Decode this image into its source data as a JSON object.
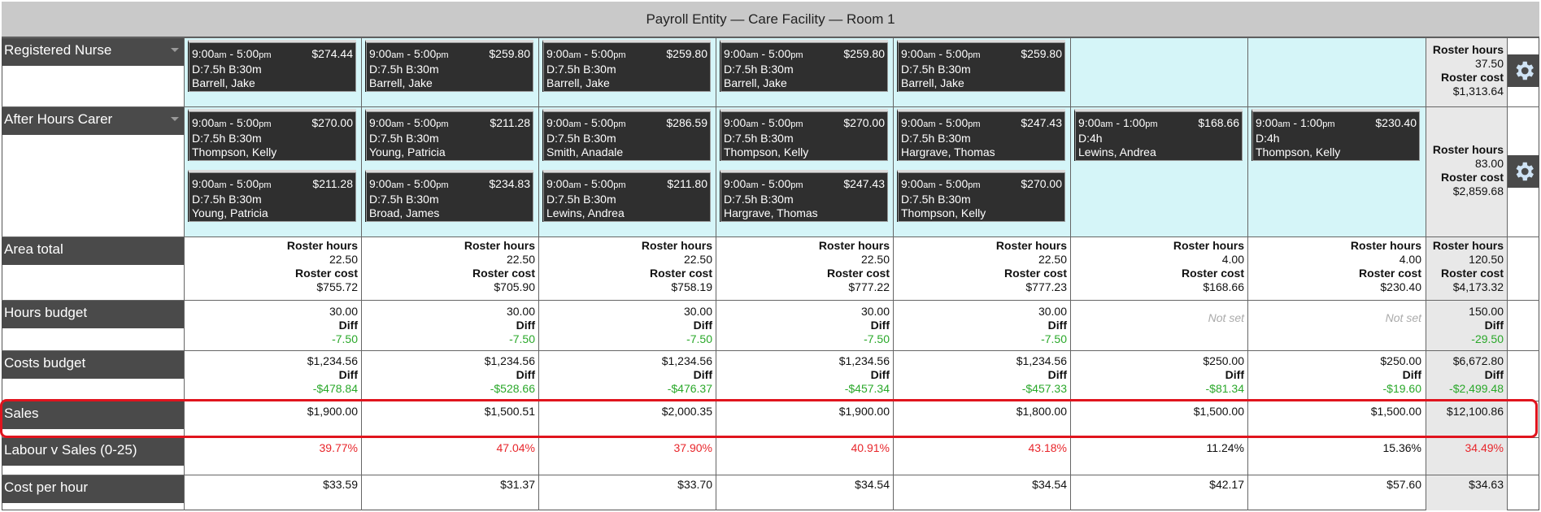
{
  "title": "Payroll Entity — Care Facility — Room 1",
  "rows": {
    "registered_nurse": "Registered Nurse",
    "after_hours_carer": "After Hours Carer",
    "area_total": "Area total",
    "hours_budget": "Hours budget",
    "costs_budget": "Costs budget",
    "sales": "Sales",
    "labour_v_sales": "Labour v Sales (0-25)",
    "cost_per_hour": "Cost per hour"
  },
  "labels": {
    "roster_hours": "Roster hours",
    "roster_cost": "Roster cost",
    "diff": "Diff",
    "not_set": "Not set"
  },
  "shifts": {
    "rn": [
      {
        "start": "9:00",
        "sa": "am",
        "end": "5:00",
        "ea": "pm",
        "cost": "$274.44",
        "detail": "D:7.5h B:30m",
        "name": "Barrell, Jake"
      },
      {
        "start": "9:00",
        "sa": "am",
        "end": "5:00",
        "ea": "pm",
        "cost": "$259.80",
        "detail": "D:7.5h B:30m",
        "name": "Barrell, Jake"
      },
      {
        "start": "9:00",
        "sa": "am",
        "end": "5:00",
        "ea": "pm",
        "cost": "$259.80",
        "detail": "D:7.5h B:30m",
        "name": "Barrell, Jake"
      },
      {
        "start": "9:00",
        "sa": "am",
        "end": "5:00",
        "ea": "pm",
        "cost": "$259.80",
        "detail": "D:7.5h B:30m",
        "name": "Barrell, Jake"
      },
      {
        "start": "9:00",
        "sa": "am",
        "end": "5:00",
        "ea": "pm",
        "cost": "$259.80",
        "detail": "D:7.5h B:30m",
        "name": "Barrell, Jake"
      }
    ],
    "ahc1": [
      {
        "start": "9:00",
        "sa": "am",
        "end": "5:00",
        "ea": "pm",
        "cost": "$270.00",
        "detail": "D:7.5h B:30m",
        "name": "Thompson, Kelly"
      },
      {
        "start": "9:00",
        "sa": "am",
        "end": "5:00",
        "ea": "pm",
        "cost": "$211.28",
        "detail": "D:7.5h B:30m",
        "name": "Young, Patricia"
      },
      {
        "start": "9:00",
        "sa": "am",
        "end": "5:00",
        "ea": "pm",
        "cost": "$286.59",
        "detail": "D:7.5h B:30m",
        "name": "Smith, Anadale"
      },
      {
        "start": "9:00",
        "sa": "am",
        "end": "5:00",
        "ea": "pm",
        "cost": "$270.00",
        "detail": "D:7.5h B:30m",
        "name": "Thompson, Kelly"
      },
      {
        "start": "9:00",
        "sa": "am",
        "end": "5:00",
        "ea": "pm",
        "cost": "$247.43",
        "detail": "D:7.5h B:30m",
        "name": "Hargrave, Thomas"
      },
      {
        "start": "9:00",
        "sa": "am",
        "end": "1:00",
        "ea": "pm",
        "cost": "$168.66",
        "detail": "D:4h",
        "name": "Lewins, Andrea"
      },
      {
        "start": "9:00",
        "sa": "am",
        "end": "1:00",
        "ea": "pm",
        "cost": "$230.40",
        "detail": "D:4h",
        "name": "Thompson, Kelly"
      }
    ],
    "ahc2": [
      {
        "start": "9:00",
        "sa": "am",
        "end": "5:00",
        "ea": "pm",
        "cost": "$211.28",
        "detail": "D:7.5h B:30m",
        "name": "Young, Patricia"
      },
      {
        "start": "9:00",
        "sa": "am",
        "end": "5:00",
        "ea": "pm",
        "cost": "$234.83",
        "detail": "D:7.5h B:30m",
        "name": "Broad, James"
      },
      {
        "start": "9:00",
        "sa": "am",
        "end": "5:00",
        "ea": "pm",
        "cost": "$211.80",
        "detail": "D:7.5h B:30m",
        "name": "Lewins, Andrea"
      },
      {
        "start": "9:00",
        "sa": "am",
        "end": "5:00",
        "ea": "pm",
        "cost": "$247.43",
        "detail": "D:7.5h B:30m",
        "name": "Hargrave, Thomas"
      },
      {
        "start": "9:00",
        "sa": "am",
        "end": "5:00",
        "ea": "pm",
        "cost": "$270.00",
        "detail": "D:7.5h B:30m",
        "name": "Thompson, Kelly"
      }
    ]
  },
  "rn_total": {
    "hours": "37.50",
    "cost": "$1,313.64"
  },
  "ahc_total": {
    "hours": "83.00",
    "cost": "$2,859.68"
  },
  "area_total": [
    {
      "hours": "22.50",
      "cost": "$755.72"
    },
    {
      "hours": "22.50",
      "cost": "$705.90"
    },
    {
      "hours": "22.50",
      "cost": "$758.19"
    },
    {
      "hours": "22.50",
      "cost": "$777.22"
    },
    {
      "hours": "22.50",
      "cost": "$777.23"
    },
    {
      "hours": "4.00",
      "cost": "$168.66"
    },
    {
      "hours": "4.00",
      "cost": "$230.40"
    },
    {
      "hours": "120.50",
      "cost": "$4,173.32"
    }
  ],
  "hours_budget": [
    {
      "value": "30.00",
      "diff": "-7.50"
    },
    {
      "value": "30.00",
      "diff": "-7.50"
    },
    {
      "value": "30.00",
      "diff": "-7.50"
    },
    {
      "value": "30.00",
      "diff": "-7.50"
    },
    {
      "value": "30.00",
      "diff": "-7.50"
    },
    {
      "value": "",
      "diff": ""
    },
    {
      "value": "",
      "diff": ""
    },
    {
      "value": "150.00",
      "diff": "-29.50"
    }
  ],
  "costs_budget": [
    {
      "value": "$1,234.56",
      "diff": "-$478.84"
    },
    {
      "value": "$1,234.56",
      "diff": "-$528.66"
    },
    {
      "value": "$1,234.56",
      "diff": "-$476.37"
    },
    {
      "value": "$1,234.56",
      "diff": "-$457.34"
    },
    {
      "value": "$1,234.56",
      "diff": "-$457.33"
    },
    {
      "value": "$250.00",
      "diff": "-$81.34"
    },
    {
      "value": "$250.00",
      "diff": "-$19.60"
    },
    {
      "value": "$6,672.80",
      "diff": "-$2,499.48"
    }
  ],
  "sales": [
    "$1,900.00",
    "$1,500.51",
    "$2,000.35",
    "$1,900.00",
    "$1,800.00",
    "$1,500.00",
    "$1,500.00",
    "$12,100.86"
  ],
  "labour_v_sales": [
    "39.77%",
    "47.04%",
    "37.90%",
    "40.91%",
    "43.18%",
    "11.24%",
    "15.36%",
    "34.49%"
  ],
  "cost_per_hour": [
    "$33.59",
    "$31.37",
    "$33.70",
    "$34.54",
    "$34.54",
    "$42.17",
    "$57.60",
    "$34.63"
  ]
}
